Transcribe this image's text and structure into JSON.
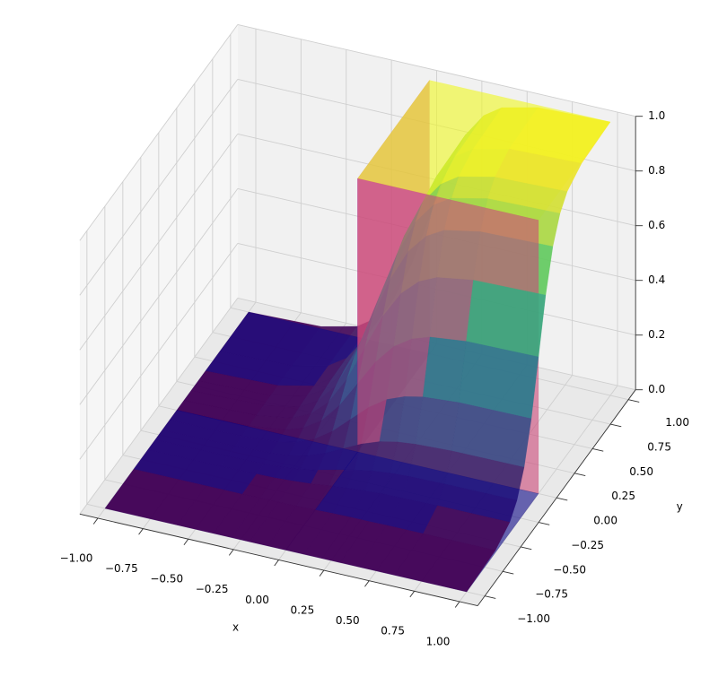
{
  "chart_data": {
    "type": "surface3d",
    "xlabel": "x",
    "ylabel": "y",
    "xlim": [
      -1.1,
      1.1
    ],
    "ylim": [
      -1.1,
      1.1
    ],
    "zlim": [
      0,
      1
    ],
    "xticks": [
      {
        "value": -1,
        "label": "−1.00"
      },
      {
        "value": -0.75,
        "label": "−0.75"
      },
      {
        "value": -0.5,
        "label": "−0.50"
      },
      {
        "value": -0.25,
        "label": "−0.25"
      },
      {
        "value": 0,
        "label": "0.00"
      },
      {
        "value": 0.25,
        "label": "0.25"
      },
      {
        "value": 0.5,
        "label": "0.50"
      },
      {
        "value": 0.75,
        "label": "0.75"
      },
      {
        "value": 1,
        "label": "1.00"
      }
    ],
    "yticks": [
      {
        "value": -1,
        "label": "−1.00"
      },
      {
        "value": -0.75,
        "label": "−0.75"
      },
      {
        "value": -0.5,
        "label": "−0.50"
      },
      {
        "value": -0.25,
        "label": "−0.25"
      },
      {
        "value": 0,
        "label": "0.00"
      },
      {
        "value": 0.25,
        "label": "0.25"
      },
      {
        "value": 0.5,
        "label": "0.50"
      },
      {
        "value": 0.75,
        "label": "0.75"
      },
      {
        "value": 1,
        "label": "1.00"
      }
    ],
    "zticks": [
      {
        "value": 0,
        "label": "0.0"
      },
      {
        "value": 0.2,
        "label": "0.2"
      },
      {
        "value": 0.4,
        "label": "0.4"
      },
      {
        "value": 0.6,
        "label": "0.6"
      },
      {
        "value": 0.8,
        "label": "0.8"
      },
      {
        "value": 1,
        "label": "1.0"
      }
    ],
    "grid": true,
    "surfaces": [
      {
        "colormap": "viridis",
        "alpha": 0.92,
        "x": [
          -1,
          -0.6,
          -0.4,
          -0.3,
          -0.2,
          -0.1,
          0,
          0.1,
          0.2,
          0.3,
          0.4,
          0.6,
          1
        ],
        "y": [
          -1,
          -0.6,
          -0.4,
          -0.3,
          -0.2,
          -0.1,
          0,
          0.1,
          0.2,
          0.3,
          0.4,
          0.6,
          1
        ],
        "z": [
          [
            0,
            0,
            0,
            0,
            0,
            0,
            0,
            0,
            0,
            0,
            0,
            0,
            0
          ],
          [
            0,
            0,
            0,
            0.001,
            0.001,
            0.002,
            0.004,
            0.006,
            0.007,
            0.007,
            0.008,
            0.008,
            0.008
          ],
          [
            0,
            0,
            0.002,
            0.003,
            0.007,
            0.012,
            0.02,
            0.027,
            0.032,
            0.036,
            0.037,
            0.039,
            0.039
          ],
          [
            0,
            0.001,
            0.003,
            0.007,
            0.014,
            0.026,
            0.042,
            0.057,
            0.069,
            0.076,
            0.08,
            0.082,
            0.083
          ],
          [
            0,
            0.001,
            0.007,
            0.014,
            0.028,
            0.052,
            0.084,
            0.116,
            0.14,
            0.154,
            0.161,
            0.167,
            0.168
          ],
          [
            0,
            0.002,
            0.012,
            0.026,
            0.052,
            0.096,
            0.155,
            0.214,
            0.258,
            0.284,
            0.298,
            0.308,
            0.31
          ],
          [
            0,
            0.004,
            0.02,
            0.042,
            0.084,
            0.155,
            0.25,
            0.345,
            0.416,
            0.459,
            0.481,
            0.496,
            0.5
          ],
          [
            0,
            0.006,
            0.027,
            0.057,
            0.116,
            0.214,
            0.345,
            0.476,
            0.574,
            0.633,
            0.663,
            0.684,
            0.69
          ],
          [
            0,
            0.007,
            0.032,
            0.069,
            0.14,
            0.258,
            0.416,
            0.574,
            0.692,
            0.763,
            0.8,
            0.825,
            0.832
          ],
          [
            0,
            0.007,
            0.036,
            0.076,
            0.154,
            0.284,
            0.459,
            0.633,
            0.763,
            0.841,
            0.881,
            0.91,
            0.917
          ],
          [
            0,
            0.008,
            0.037,
            0.08,
            0.161,
            0.298,
            0.481,
            0.663,
            0.8,
            0.881,
            0.924,
            0.953,
            0.961
          ],
          [
            0,
            0.008,
            0.039,
            0.082,
            0.167,
            0.308,
            0.496,
            0.684,
            0.825,
            0.91,
            0.953,
            0.984,
            0.992
          ],
          [
            0,
            0.008,
            0.039,
            0.083,
            0.168,
            0.31,
            0.5,
            0.69,
            0.832,
            0.917,
            0.961,
            0.992,
            1
          ]
        ]
      },
      {
        "colormap": "plasma",
        "alpha": 0.6,
        "x": [
          -1,
          0,
          0,
          1
        ],
        "y": [
          -1,
          0,
          0,
          1
        ],
        "z": [
          [
            0,
            0,
            0,
            0
          ],
          [
            0,
            0,
            0,
            0
          ],
          [
            0,
            0,
            1,
            1
          ],
          [
            0,
            0,
            1,
            1
          ]
        ]
      }
    ]
  }
}
